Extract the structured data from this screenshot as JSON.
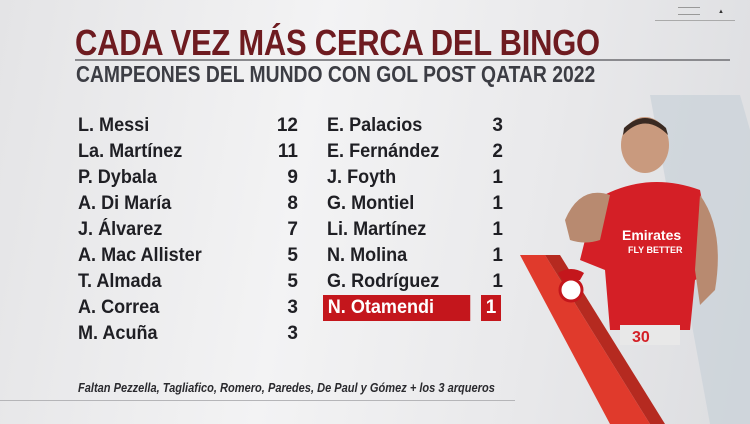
{
  "header": {
    "title": "CADA VEZ MÁS CERCA DEL BINGO",
    "subtitle": "CAMPEONES DEL MUNDO CON GOL POST QATAR 2022"
  },
  "left_column": [
    {
      "name": "L. Messi",
      "goals": "12"
    },
    {
      "name": "La. Martínez",
      "goals": "11"
    },
    {
      "name": "P. Dybala",
      "goals": "9"
    },
    {
      "name": "A. Di María",
      "goals": "8"
    },
    {
      "name": "J. Álvarez",
      "goals": "7"
    },
    {
      "name": "A. Mac Allister",
      "goals": "5"
    },
    {
      "name": "T. Almada",
      "goals": "5"
    },
    {
      "name": "A. Correa",
      "goals": "3"
    },
    {
      "name": "M. Acuña",
      "goals": "3"
    }
  ],
  "right_column": [
    {
      "name": "E. Palacios",
      "goals": "3"
    },
    {
      "name": "E. Fernández",
      "goals": "2"
    },
    {
      "name": "J. Foyth",
      "goals": "1"
    },
    {
      "name": "G. Montiel",
      "goals": "1"
    },
    {
      "name": "Li. Martínez",
      "goals": "1"
    },
    {
      "name": "N. Molina",
      "goals": "1"
    },
    {
      "name": "G. Rodríguez",
      "goals": "1"
    },
    {
      "name": "N. Otamendi",
      "goals": "1",
      "highlighted": true
    }
  ],
  "footer": {
    "note": "Faltan Pezzella, Tagliafico, Romero, Paredes, De Paul y Gómez + los 3 arqueros"
  },
  "player_photo": {
    "shirt_sponsor": "Emirates FLY BETTER",
    "shirt_number": "30",
    "club_crest": "benfica-crest"
  },
  "colors": {
    "title": "#6e1b20",
    "highlight": "#c4161c",
    "stripe": "#e03a2c"
  }
}
